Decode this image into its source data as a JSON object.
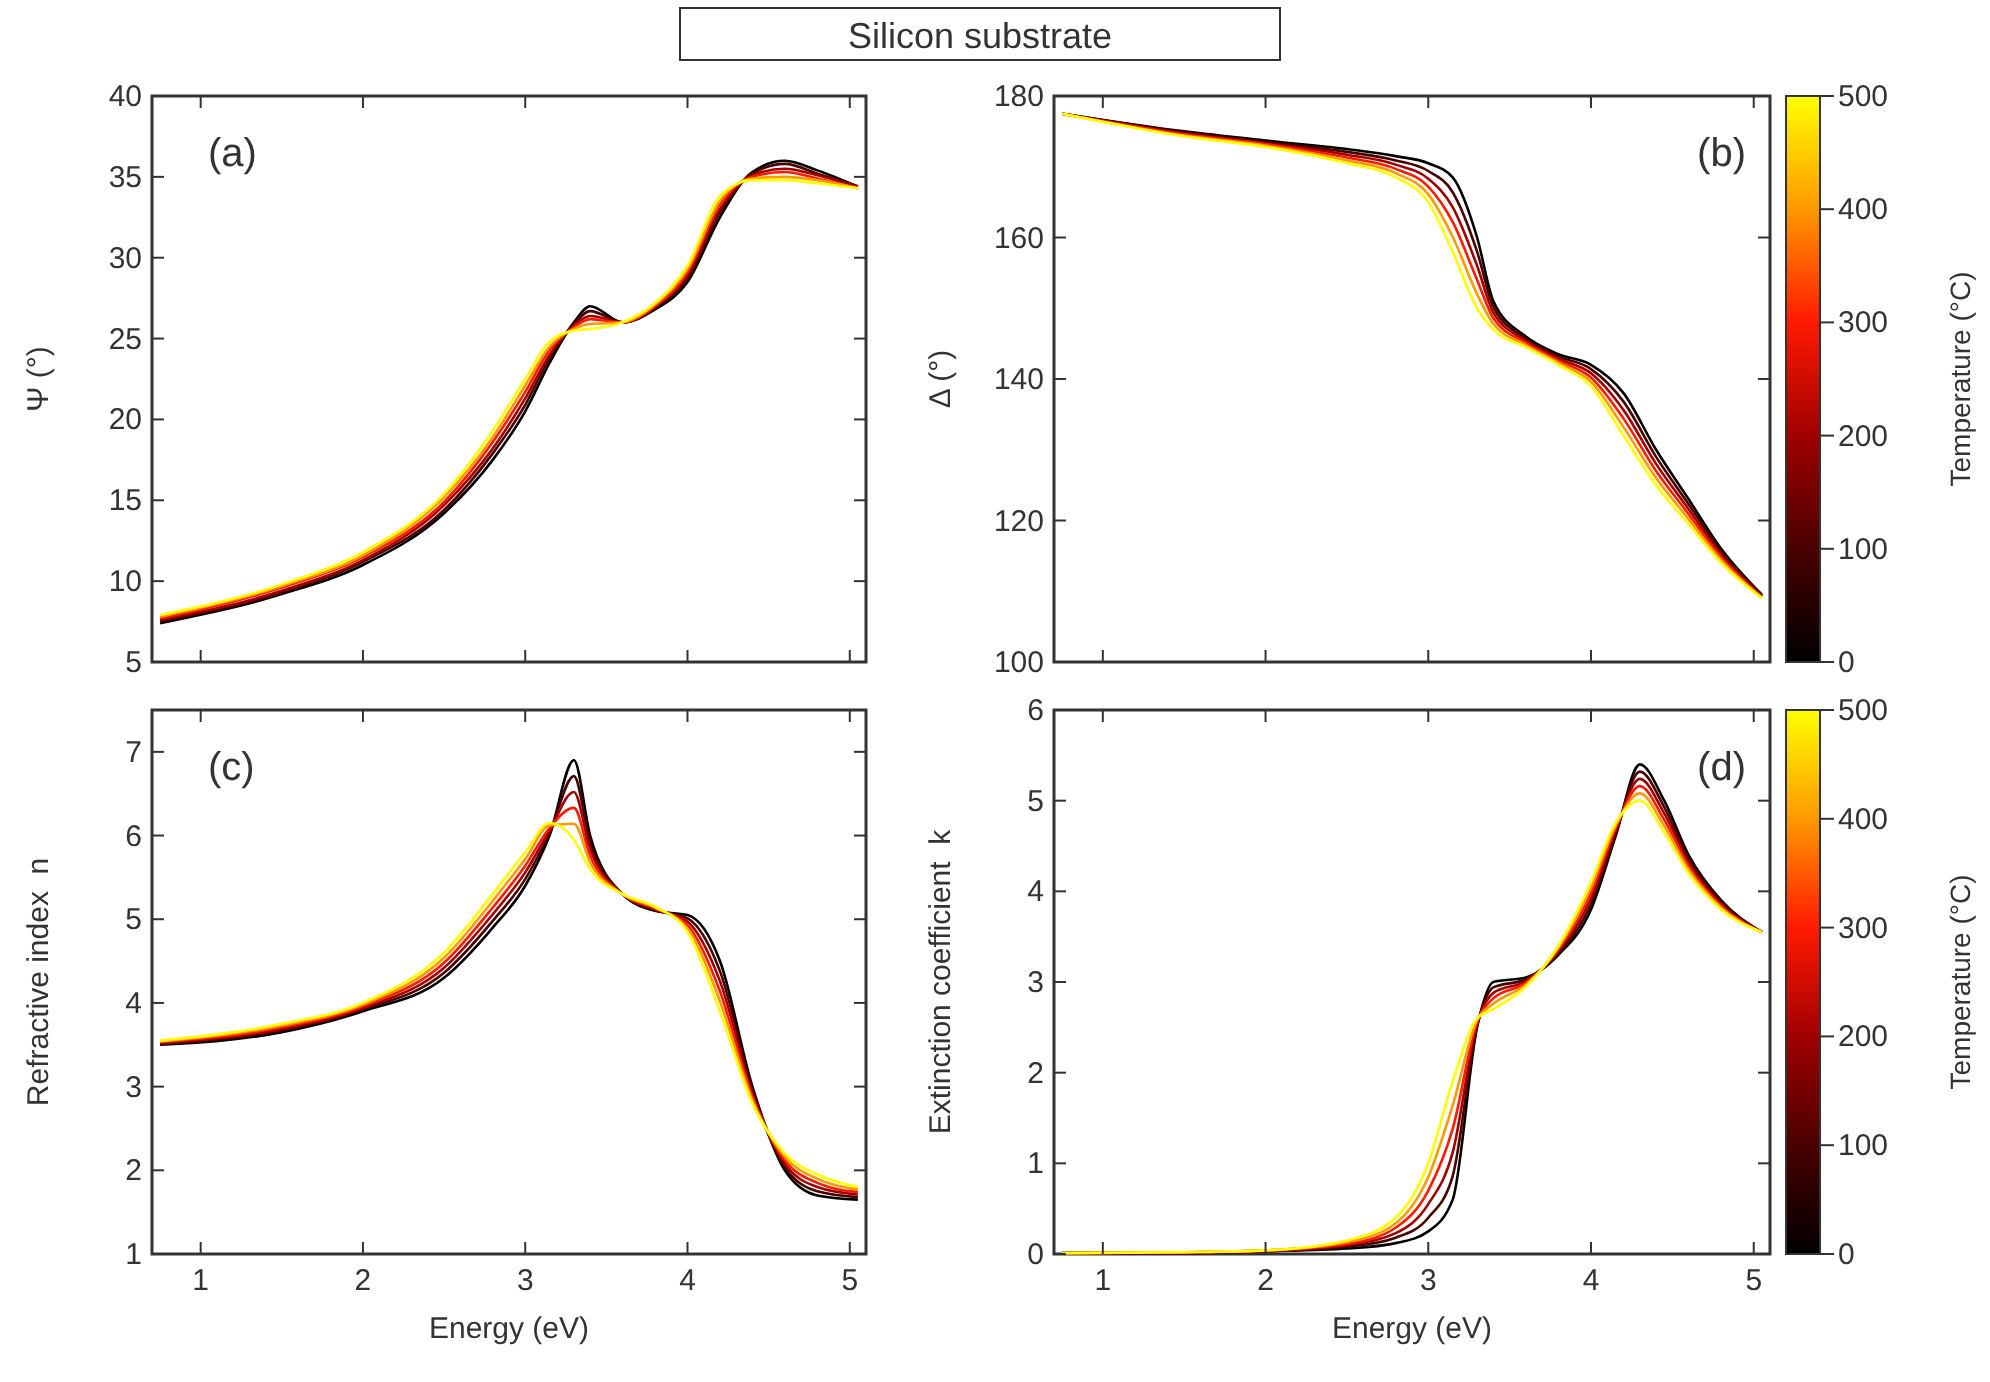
{
  "chart_data": [
    {
      "type": "line",
      "title": "Silicon substrate",
      "ylabel": "Ψ (°)",
      "annotations": [
        "(a)"
      ],
      "xlim": [
        0.7,
        5.1
      ],
      "xticks": [
        1,
        2,
        3,
        4,
        5
      ],
      "ylim": [
        5,
        40
      ],
      "yticks": [
        5,
        10,
        15,
        20,
        25,
        30,
        35,
        40
      ],
      "tick_labels": "y",
      "x": [
        0.75,
        1.5,
        2,
        2.5,
        2.8,
        3.0,
        3.15,
        3.3,
        3.4,
        3.6,
        3.8,
        4.0,
        4.2,
        4.4,
        4.6,
        4.8,
        5.05
      ],
      "series": [
        {
          "color": "#000000",
          "values": [
            7.4,
            9.2,
            11.0,
            14.2,
            17.5,
            20.5,
            23.5,
            26.0,
            27.0,
            26.0,
            26.8,
            28.5,
            32.5,
            35.3,
            36.0,
            35.4,
            34.4
          ]
        },
        {
          "color": "#4a0000",
          "values": [
            7.5,
            9.3,
            11.2,
            14.4,
            17.9,
            20.9,
            23.8,
            25.9,
            26.7,
            26.0,
            26.9,
            28.7,
            32.8,
            35.2,
            35.8,
            35.2,
            34.4
          ]
        },
        {
          "color": "#a00000",
          "values": [
            7.6,
            9.4,
            11.3,
            14.7,
            18.2,
            21.3,
            24.0,
            25.8,
            26.4,
            26.0,
            27.0,
            28.9,
            33.0,
            35.1,
            35.5,
            35.1,
            34.4
          ]
        },
        {
          "color": "#ff1a00",
          "values": [
            7.7,
            9.6,
            11.5,
            14.9,
            18.6,
            21.7,
            24.3,
            25.7,
            26.2,
            26.0,
            27.0,
            29.1,
            33.3,
            35.0,
            35.3,
            34.9,
            34.3
          ]
        },
        {
          "color": "#ff9900",
          "values": [
            7.8,
            9.7,
            11.6,
            15.2,
            18.9,
            22.1,
            24.5,
            25.6,
            25.9,
            26.0,
            27.1,
            29.3,
            33.5,
            34.9,
            35.0,
            34.8,
            34.3
          ]
        },
        {
          "color": "#ffff00",
          "values": [
            7.9,
            9.8,
            11.8,
            15.4,
            19.3,
            22.5,
            24.8,
            25.5,
            25.6,
            26.0,
            27.2,
            29.5,
            33.8,
            34.8,
            34.8,
            34.6,
            34.3
          ]
        }
      ]
    },
    {
      "type": "line",
      "ylabel": "Δ (°)",
      "annotations": [
        "(b)"
      ],
      "clabel": "Temperature (°C)",
      "clim": [
        0,
        500
      ],
      "cticks": [
        0,
        100,
        200,
        300,
        400,
        500
      ],
      "xlim": [
        0.7,
        5.1
      ],
      "xticks": [
        1,
        2,
        3,
        4,
        5
      ],
      "ylim": [
        100,
        180
      ],
      "yticks": [
        100,
        120,
        140,
        160,
        180
      ],
      "tick_labels": "y",
      "x": [
        0.75,
        1.5,
        2,
        2.5,
        2.8,
        3.0,
        3.15,
        3.3,
        3.4,
        3.6,
        3.8,
        4.0,
        4.2,
        4.4,
        4.6,
        4.8,
        5.05
      ],
      "series": [
        {
          "color": "#000000",
          "values": [
            177.5,
            175.0,
            173.7,
            172.5,
            171.5,
            170.5,
            168.5,
            160,
            151.0,
            146.0,
            143.5,
            142.0,
            138.0,
            130,
            123.0,
            116.0,
            109.5
          ]
        },
        {
          "color": "#4a0000",
          "values": [
            177.5,
            174.9,
            173.5,
            172.1,
            170.9,
            169.4,
            166.4,
            158,
            150.2,
            145.7,
            143.2,
            141.4,
            136.8,
            129,
            122.3,
            115.6,
            109.4
          ]
        },
        {
          "color": "#a00000",
          "values": [
            177.5,
            174.7,
            173.3,
            171.7,
            170.3,
            168.3,
            164.3,
            156,
            149.4,
            145.4,
            142.9,
            140.8,
            135.6,
            128,
            121.6,
            115.2,
            109.3
          ]
        },
        {
          "color": "#ff1a00",
          "values": [
            177.5,
            174.6,
            173.2,
            171.3,
            169.7,
            167.2,
            162.2,
            154,
            148.6,
            145.1,
            142.6,
            140.2,
            134.4,
            127,
            120.9,
            114.8,
            109.2
          ]
        },
        {
          "color": "#ff9900",
          "values": [
            177.5,
            174.4,
            173.0,
            170.9,
            169.1,
            166.1,
            160.1,
            152,
            147.8,
            144.8,
            142.3,
            139.6,
            133.2,
            126,
            120.2,
            114.4,
            109.1
          ]
        },
        {
          "color": "#ffff00",
          "values": [
            177.5,
            174.3,
            172.8,
            170.5,
            168.5,
            165.0,
            158.0,
            150,
            147.0,
            144.5,
            142.0,
            139.0,
            132.0,
            125,
            119.5,
            114.0,
            109.0
          ]
        }
      ]
    },
    {
      "type": "line",
      "xlabel": "Energy (eV)",
      "ylabel": "Refractive index  n",
      "annotations": [
        "(c)"
      ],
      "xlim": [
        0.7,
        5.1
      ],
      "xticks": [
        1,
        2,
        3,
        4,
        5
      ],
      "ylim": [
        1,
        7.5
      ],
      "yticks": [
        1,
        2,
        3,
        4,
        5,
        6,
        7
      ],
      "x": [
        0.75,
        1.5,
        2,
        2.5,
        2.8,
        3.0,
        3.15,
        3.3,
        3.4,
        3.6,
        3.8,
        4.0,
        4.2,
        4.4,
        4.6,
        4.8,
        5.05
      ],
      "series": [
        {
          "color": "#000000",
          "values": [
            3.5,
            3.65,
            3.9,
            4.3,
            4.9,
            5.4,
            6.0,
            6.9,
            6.0,
            5.3,
            5.1,
            5.05,
            4.5,
            3.0,
            2.0,
            1.7,
            1.65
          ]
        },
        {
          "color": "#4a0000",
          "values": [
            3.51,
            3.67,
            3.92,
            4.36,
            4.98,
            5.48,
            6.03,
            6.71,
            5.92,
            5.3,
            5.11,
            5.01,
            4.38,
            2.96,
            2.04,
            1.75,
            1.68
          ]
        },
        {
          "color": "#a00000",
          "values": [
            3.52,
            3.69,
            3.94,
            4.42,
            5.06,
            5.56,
            6.06,
            6.52,
            5.84,
            5.3,
            5.12,
            4.97,
            4.26,
            2.92,
            2.08,
            1.8,
            1.71
          ]
        },
        {
          "color": "#ff1a00",
          "values": [
            3.53,
            3.71,
            3.96,
            4.48,
            5.14,
            5.64,
            6.09,
            6.33,
            5.76,
            5.3,
            5.13,
            4.93,
            4.14,
            2.88,
            2.12,
            1.85,
            1.74
          ]
        },
        {
          "color": "#ff9900",
          "values": [
            3.54,
            3.73,
            3.98,
            4.54,
            5.22,
            5.72,
            6.12,
            6.14,
            5.68,
            5.3,
            5.14,
            4.89,
            4.02,
            2.84,
            2.16,
            1.9,
            1.77
          ]
        },
        {
          "color": "#ffff00",
          "values": [
            3.55,
            3.75,
            4.0,
            4.6,
            5.3,
            5.8,
            6.15,
            5.95,
            5.6,
            5.3,
            5.15,
            4.85,
            3.9,
            2.8,
            2.2,
            1.95,
            1.8
          ]
        }
      ]
    },
    {
      "type": "line",
      "xlabel": "Energy (eV)",
      "ylabel": "Extinction coefficient  k",
      "annotations": [
        "(d)"
      ],
      "clabel": "Temperature (°C)",
      "clim": [
        0,
        500
      ],
      "cticks": [
        0,
        100,
        200,
        300,
        400,
        500
      ],
      "xlim": [
        0.7,
        5.1
      ],
      "xticks": [
        1,
        2,
        3,
        4,
        5
      ],
      "ylim": [
        0,
        6
      ],
      "yticks": [
        0,
        1,
        2,
        3,
        4,
        5,
        6
      ],
      "x": [
        0.75,
        1.5,
        2,
        2.5,
        2.8,
        3.0,
        3.15,
        3.3,
        3.4,
        3.6,
        3.8,
        4.0,
        4.15,
        4.3,
        4.45,
        4.6,
        4.8,
        5.05
      ],
      "series": [
        {
          "color": "#000000",
          "values": [
            0.01,
            0.01,
            0.03,
            0.06,
            0.12,
            0.25,
            0.6,
            2.5,
            3.0,
            3.05,
            3.3,
            3.8,
            4.6,
            5.4,
            5.0,
            4.4,
            3.9,
            3.55
          ]
        },
        {
          "color": "#4a0000",
          "values": [
            0.01,
            0.01,
            0.03,
            0.08,
            0.18,
            0.4,
            0.86,
            2.52,
            2.94,
            3.03,
            3.32,
            3.86,
            4.63,
            5.32,
            4.93,
            4.36,
            3.88,
            3.55
          ]
        },
        {
          "color": "#a00000",
          "values": [
            0.01,
            0.01,
            0.03,
            0.1,
            0.23,
            0.55,
            1.12,
            2.54,
            2.88,
            3.01,
            3.34,
            3.92,
            4.66,
            5.24,
            4.86,
            4.32,
            3.86,
            3.55
          ]
        },
        {
          "color": "#ff1a00",
          "values": [
            0.01,
            0.02,
            0.04,
            0.11,
            0.29,
            0.7,
            1.38,
            2.56,
            2.82,
            2.99,
            3.36,
            3.98,
            4.69,
            5.16,
            4.79,
            4.28,
            3.84,
            3.55
          ]
        },
        {
          "color": "#ff9900",
          "values": [
            0.01,
            0.02,
            0.04,
            0.13,
            0.34,
            0.85,
            1.64,
            2.58,
            2.76,
            2.97,
            3.38,
            4.04,
            4.72,
            5.08,
            4.72,
            4.24,
            3.82,
            3.55
          ]
        },
        {
          "color": "#ffff00",
          "values": [
            0.01,
            0.02,
            0.04,
            0.15,
            0.4,
            1.0,
            1.9,
            2.6,
            2.7,
            2.95,
            3.4,
            4.1,
            4.75,
            5.0,
            4.65,
            4.2,
            3.8,
            3.55
          ]
        }
      ]
    }
  ]
}
